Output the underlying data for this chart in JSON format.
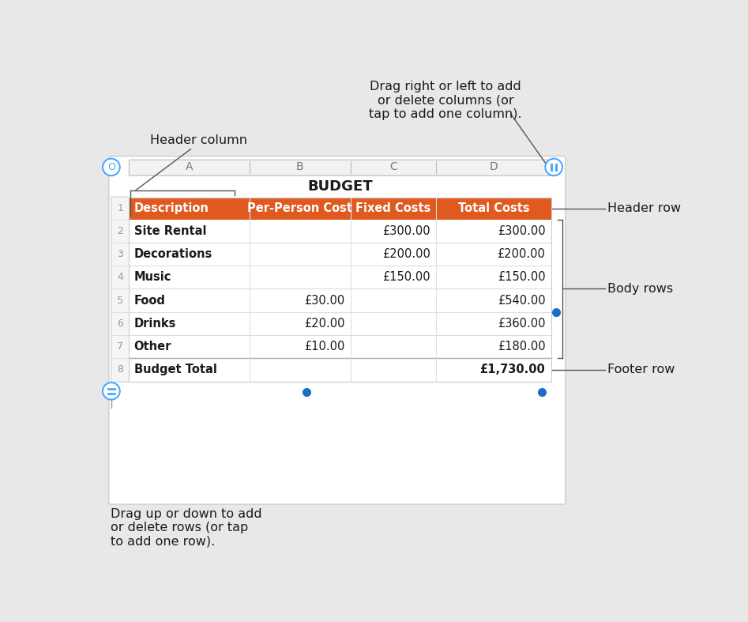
{
  "bg_color": "#e8e8e8",
  "table_bg": "#ffffff",
  "header_row_color": "#e05a20",
  "header_text_color": "#ffffff",
  "body_text_color": "#1a1a1a",
  "footer_text_color": "#1a1a1a",
  "grid_color": "#cccccc",
  "row_number_color": "#999999",
  "title": "BUDGET",
  "col_headers": [
    "A",
    "B",
    "C",
    "D"
  ],
  "table_headers": [
    "Description",
    "Per-Person Cost",
    "Fixed Costs",
    "Total Costs"
  ],
  "body_rows": [
    [
      "Site Rental",
      "",
      "£300.00",
      "£300.00"
    ],
    [
      "Decorations",
      "",
      "£200.00",
      "£200.00"
    ],
    [
      "Music",
      "",
      "£150.00",
      "£150.00"
    ],
    [
      "Food",
      "£30.00",
      "",
      "£540.00"
    ],
    [
      "Drinks",
      "£20.00",
      "",
      "£360.00"
    ],
    [
      "Other",
      "£10.00",
      "",
      "£180.00"
    ]
  ],
  "footer_row": [
    "Budget Total",
    "",
    "",
    "£1,730.00"
  ],
  "row_numbers": [
    "1",
    "2",
    "3",
    "4",
    "5",
    "6",
    "7",
    "8"
  ],
  "annotation_top_right": "Drag right or left to add\nor delete columns (or\ntap to add one column).",
  "annotation_header_col": "Header column",
  "annotation_header_row": "Header row",
  "annotation_body_rows": "Body rows",
  "annotation_footer_row": "Footer row",
  "annotation_bottom_left": "Drag up or down to add\nor delete rows (or tap\nto add one row).",
  "dot_color": "#1a6fc4",
  "line_color": "#808080"
}
